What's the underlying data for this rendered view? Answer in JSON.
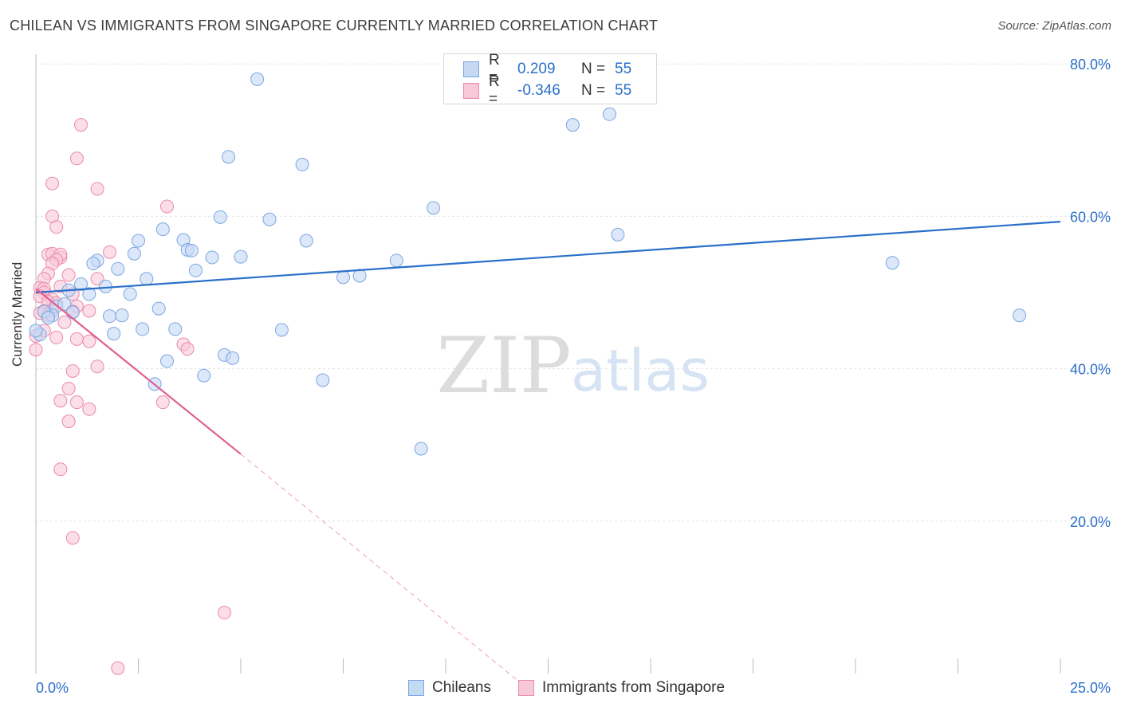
{
  "header": {
    "title": "CHILEAN VS IMMIGRANTS FROM SINGAPORE CURRENTLY MARRIED CORRELATION CHART",
    "source": "Source: ZipAtlas.com"
  },
  "legend": {
    "rows": [
      {
        "r_label": "R =",
        "r_value": "0.209",
        "n_label": "N =",
        "n_value": "55"
      },
      {
        "r_label": "R =",
        "r_value": "-0.346",
        "n_label": "N =",
        "n_value": "55"
      }
    ]
  },
  "bottom_legend": {
    "series_a": "Chileans",
    "series_b": "Immigrants from Singapore"
  },
  "watermark": {
    "zip": "ZIP",
    "atlas": "atlas"
  },
  "colors": {
    "blue_fill": "#c5d9f5",
    "blue_stroke": "#7aa6e0",
    "blue_line": "#2a6fc9",
    "pink_fill": "#f8c8d8",
    "pink_stroke": "#e98aab",
    "pink_line": "#e0608f",
    "axis_text": "#2a6fc9",
    "grid": "#e3e3e3"
  },
  "chart_data": {
    "type": "scatter",
    "title": "CHILEAN VS IMMIGRANTS FROM SINGAPORE CURRENTLY MARRIED CORRELATION CHART",
    "xlabel": "",
    "ylabel": "Currently Married",
    "xlim": [
      0,
      25
    ],
    "ylim": [
      0,
      82
    ],
    "x_tick_labels": [
      "0.0%",
      "25.0%"
    ],
    "y_ticks": [
      20,
      40,
      60,
      80
    ],
    "y_tick_labels": [
      "20.0%",
      "40.0%",
      "60.0%",
      "80.0%"
    ],
    "grid": true,
    "series": [
      {
        "name": "Chileans",
        "r": 0.209,
        "n": 55,
        "trend": {
          "x0": 0,
          "y0": 50.0,
          "x1": 25,
          "y1": 59.3
        },
        "points": [
          [
            5.4,
            78.0
          ],
          [
            13.1,
            72.0
          ],
          [
            14.0,
            73.4
          ],
          [
            4.7,
            67.8
          ],
          [
            6.5,
            66.8
          ],
          [
            9.7,
            61.1
          ],
          [
            4.5,
            59.9
          ],
          [
            5.7,
            59.6
          ],
          [
            3.1,
            58.3
          ],
          [
            2.5,
            56.8
          ],
          [
            3.6,
            56.9
          ],
          [
            6.6,
            56.8
          ],
          [
            14.2,
            57.6
          ],
          [
            3.7,
            55.6
          ],
          [
            2.4,
            55.1
          ],
          [
            3.8,
            55.5
          ],
          [
            4.3,
            54.6
          ],
          [
            5.0,
            54.7
          ],
          [
            1.5,
            54.2
          ],
          [
            1.4,
            53.8
          ],
          [
            8.8,
            54.2
          ],
          [
            2.0,
            53.1
          ],
          [
            3.9,
            52.9
          ],
          [
            7.5,
            52.0
          ],
          [
            7.9,
            52.2
          ],
          [
            2.7,
            51.8
          ],
          [
            1.1,
            51.1
          ],
          [
            1.7,
            50.8
          ],
          [
            0.8,
            50.3
          ],
          [
            1.3,
            49.8
          ],
          [
            2.3,
            49.8
          ],
          [
            0.5,
            48.2
          ],
          [
            0.7,
            48.5
          ],
          [
            3.0,
            47.9
          ],
          [
            0.9,
            47.4
          ],
          [
            0.4,
            47.0
          ],
          [
            1.8,
            46.9
          ],
          [
            2.1,
            47.0
          ],
          [
            0.2,
            47.5
          ],
          [
            0.3,
            46.7
          ],
          [
            2.6,
            45.2
          ],
          [
            3.4,
            45.2
          ],
          [
            6.0,
            45.1
          ],
          [
            20.9,
            53.9
          ],
          [
            24.0,
            47.0
          ],
          [
            1.9,
            44.6
          ],
          [
            4.6,
            41.8
          ],
          [
            4.8,
            41.4
          ],
          [
            3.2,
            41.0
          ],
          [
            4.1,
            39.1
          ],
          [
            2.9,
            38.0
          ],
          [
            7.0,
            38.5
          ],
          [
            9.4,
            29.5
          ],
          [
            0.1,
            44.5
          ],
          [
            0.0,
            45.0
          ]
        ]
      },
      {
        "name": "Immigrants from Singapore",
        "r": -0.346,
        "n": 55,
        "trend": {
          "x0": 0,
          "y0": 50.5,
          "x1": 5.0,
          "y1": 28.8
        },
        "trend_dashed": {
          "x0": 5.0,
          "y0": 28.8,
          "x1": 12.0,
          "y1": -2.0
        },
        "points": [
          [
            1.1,
            72.0
          ],
          [
            1.0,
            67.6
          ],
          [
            0.4,
            64.3
          ],
          [
            1.5,
            63.6
          ],
          [
            3.2,
            61.3
          ],
          [
            0.4,
            60.0
          ],
          [
            0.5,
            58.6
          ],
          [
            0.3,
            55.0
          ],
          [
            0.4,
            55.1
          ],
          [
            0.6,
            54.6
          ],
          [
            0.6,
            55.0
          ],
          [
            0.5,
            54.3
          ],
          [
            1.8,
            55.3
          ],
          [
            0.4,
            53.8
          ],
          [
            0.3,
            52.5
          ],
          [
            0.8,
            52.3
          ],
          [
            1.5,
            51.8
          ],
          [
            0.2,
            51.8
          ],
          [
            0.6,
            50.8
          ],
          [
            0.1,
            50.6
          ],
          [
            0.2,
            50.5
          ],
          [
            0.2,
            50.0
          ],
          [
            0.9,
            49.8
          ],
          [
            0.1,
            49.5
          ],
          [
            0.4,
            49.1
          ],
          [
            0.3,
            48.8
          ],
          [
            0.5,
            48.6
          ],
          [
            1.0,
            48.2
          ],
          [
            0.2,
            47.6
          ],
          [
            0.4,
            47.6
          ],
          [
            0.9,
            47.5
          ],
          [
            1.3,
            47.6
          ],
          [
            0.1,
            47.3
          ],
          [
            0.3,
            47.0
          ],
          [
            0.7,
            46.1
          ],
          [
            0.5,
            44.1
          ],
          [
            1.0,
            43.9
          ],
          [
            1.3,
            43.6
          ],
          [
            3.6,
            43.2
          ],
          [
            3.7,
            42.6
          ],
          [
            0.0,
            42.5
          ],
          [
            1.5,
            40.3
          ],
          [
            0.9,
            39.7
          ],
          [
            0.8,
            37.4
          ],
          [
            0.6,
            35.8
          ],
          [
            1.0,
            35.6
          ],
          [
            3.1,
            35.6
          ],
          [
            1.3,
            34.7
          ],
          [
            0.8,
            33.1
          ],
          [
            0.6,
            26.8
          ],
          [
            0.9,
            17.8
          ],
          [
            4.6,
            8.0
          ],
          [
            2.0,
            0.7
          ],
          [
            0.2,
            45.0
          ],
          [
            0.0,
            44.3
          ]
        ]
      }
    ]
  }
}
